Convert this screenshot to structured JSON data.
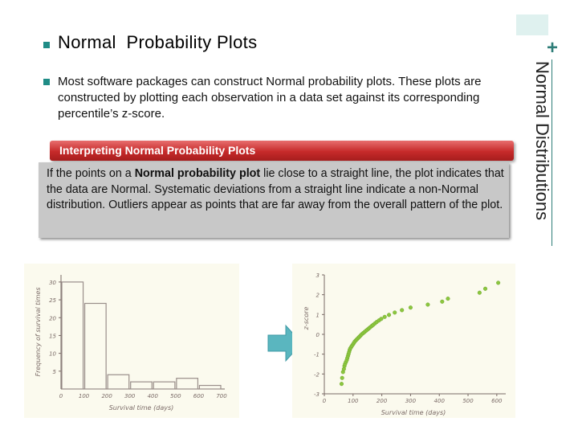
{
  "title": {
    "prefix": "Normal",
    "rest": "Probability Plots"
  },
  "side_title": "Normal Distributions",
  "plus_mark": "+",
  "bullet_text": "Most software packages can construct Normal probability plots. These plots are constructed by plotting each observation in a data set against its corresponding percentile’s z-score.",
  "box": {
    "header": "Interpreting Normal Probability Plots",
    "body_before": "If the points on a ",
    "body_bold": "Normal probability plot",
    "body_after": " lie close to a straight line, the plot indicates that the data are Normal. Systematic deviations from a straight line indicate a non-Normal distribution. Outliers appear as points that are far away from the overall pattern of the plot."
  },
  "colors": {
    "accent": "#1f8c86",
    "box_header": "#c62a2a",
    "box_body": "#c8c8c8",
    "panel": "#fbfaee",
    "arrow": "#5ab6bf"
  },
  "chart_data": [
    {
      "type": "bar",
      "title": "",
      "xlabel": "Survival time (days)",
      "ylabel": "Frequency of survival times",
      "categories": [
        "0-100",
        "100-200",
        "200-300",
        "300-400",
        "400-500",
        "500-600",
        "600-700"
      ],
      "values": [
        30,
        24,
        4,
        2,
        2,
        3,
        1
      ],
      "xticks": [
        "0",
        "100",
        "200",
        "300",
        "400",
        "500",
        "600",
        "700"
      ],
      "yticks": [
        "5",
        "10",
        "15",
        "20",
        "25",
        "30"
      ],
      "ylim": [
        0,
        32
      ],
      "grid": false
    },
    {
      "type": "scatter",
      "title": "",
      "xlabel": "Survival time (days)",
      "ylabel": "z-score",
      "xticks": [
        "0",
        "100",
        "200",
        "300",
        "400",
        "500",
        "600"
      ],
      "yticks": [
        "-3",
        "-2",
        "-1",
        "0",
        "1",
        "2",
        "3"
      ],
      "xlim": [
        0,
        620
      ],
      "ylim": [
        -3,
        3
      ],
      "points": [
        [
          60,
          -2.5
        ],
        [
          62,
          -2.2
        ],
        [
          65,
          -1.9
        ],
        [
          68,
          -1.75
        ],
        [
          70,
          -1.6
        ],
        [
          72,
          -1.5
        ],
        [
          75,
          -1.4
        ],
        [
          78,
          -1.3
        ],
        [
          80,
          -1.2
        ],
        [
          82,
          -1.1
        ],
        [
          84,
          -1.0
        ],
        [
          86,
          -0.9
        ],
        [
          88,
          -0.8
        ],
        [
          90,
          -0.72
        ],
        [
          93,
          -0.65
        ],
        [
          96,
          -0.58
        ],
        [
          100,
          -0.5
        ],
        [
          103,
          -0.43
        ],
        [
          106,
          -0.36
        ],
        [
          110,
          -0.3
        ],
        [
          114,
          -0.24
        ],
        [
          118,
          -0.18
        ],
        [
          122,
          -0.12
        ],
        [
          126,
          -0.06
        ],
        [
          130,
          0.0
        ],
        [
          135,
          0.06
        ],
        [
          140,
          0.12
        ],
        [
          145,
          0.18
        ],
        [
          150,
          0.24
        ],
        [
          155,
          0.3
        ],
        [
          160,
          0.36
        ],
        [
          165,
          0.42
        ],
        [
          170,
          0.48
        ],
        [
          176,
          0.55
        ],
        [
          182,
          0.62
        ],
        [
          190,
          0.7
        ],
        [
          198,
          0.78
        ],
        [
          210,
          0.88
        ],
        [
          225,
          0.98
        ],
        [
          245,
          1.1
        ],
        [
          270,
          1.22
        ],
        [
          300,
          1.35
        ],
        [
          360,
          1.5
        ],
        [
          410,
          1.65
        ],
        [
          430,
          1.8
        ],
        [
          540,
          2.1
        ],
        [
          560,
          2.3
        ],
        [
          605,
          2.6
        ]
      ],
      "grid": false
    }
  ]
}
